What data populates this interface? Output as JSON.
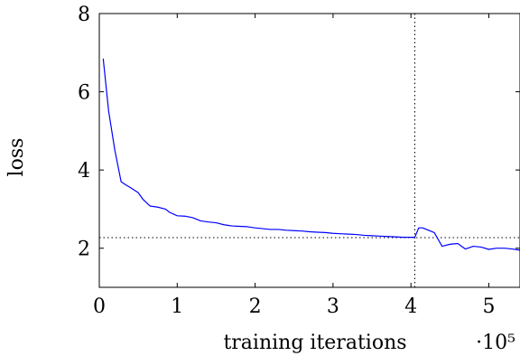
{
  "chart_data": {
    "type": "line",
    "title": "",
    "xlabel": "training iterations",
    "ylabel": "loss",
    "x_multiplier_label": "·10⁵",
    "x_unit": 100000,
    "xlim": [
      0,
      5.4
    ],
    "ylim": [
      1,
      8
    ],
    "x_ticks": [
      0,
      1,
      2,
      3,
      4,
      5
    ],
    "y_ticks": [
      2,
      4,
      6,
      8
    ],
    "grid": false,
    "series": [
      {
        "color": "#0000ff",
        "x": [
          0.05,
          0.12,
          0.2,
          0.28,
          0.34,
          0.4,
          0.5,
          0.56,
          0.65,
          0.75,
          0.85,
          0.9,
          1.0,
          1.1,
          1.2,
          1.3,
          1.4,
          1.5,
          1.6,
          1.7,
          1.8,
          1.9,
          2.0,
          2.1,
          2.2,
          2.3,
          2.4,
          2.5,
          2.6,
          2.7,
          2.8,
          2.9,
          3.0,
          3.1,
          3.2,
          3.3,
          3.4,
          3.5,
          3.6,
          3.7,
          3.8,
          3.9,
          4.0,
          4.05,
          4.1,
          4.15,
          4.2,
          4.3,
          4.4,
          4.5,
          4.6,
          4.7,
          4.8,
          4.9,
          5.0,
          5.1,
          5.2,
          5.3,
          5.4
        ],
        "y": [
          6.85,
          5.5,
          4.5,
          3.7,
          3.62,
          3.55,
          3.42,
          3.25,
          3.08,
          3.05,
          3.0,
          2.92,
          2.83,
          2.82,
          2.78,
          2.7,
          2.67,
          2.65,
          2.6,
          2.57,
          2.56,
          2.55,
          2.52,
          2.5,
          2.48,
          2.48,
          2.46,
          2.45,
          2.44,
          2.42,
          2.41,
          2.4,
          2.38,
          2.37,
          2.36,
          2.35,
          2.33,
          2.32,
          2.31,
          2.3,
          2.29,
          2.28,
          2.28,
          2.28,
          2.52,
          2.52,
          2.48,
          2.4,
          2.05,
          2.1,
          2.12,
          1.98,
          2.05,
          2.03,
          1.97,
          2.0,
          2.0,
          1.98,
          1.95
        ]
      }
    ],
    "reference_lines": [
      {
        "orientation": "horizontal",
        "value": 2.27,
        "style": "dotted"
      },
      {
        "orientation": "vertical",
        "value": 4.05,
        "style": "dotted"
      }
    ]
  }
}
